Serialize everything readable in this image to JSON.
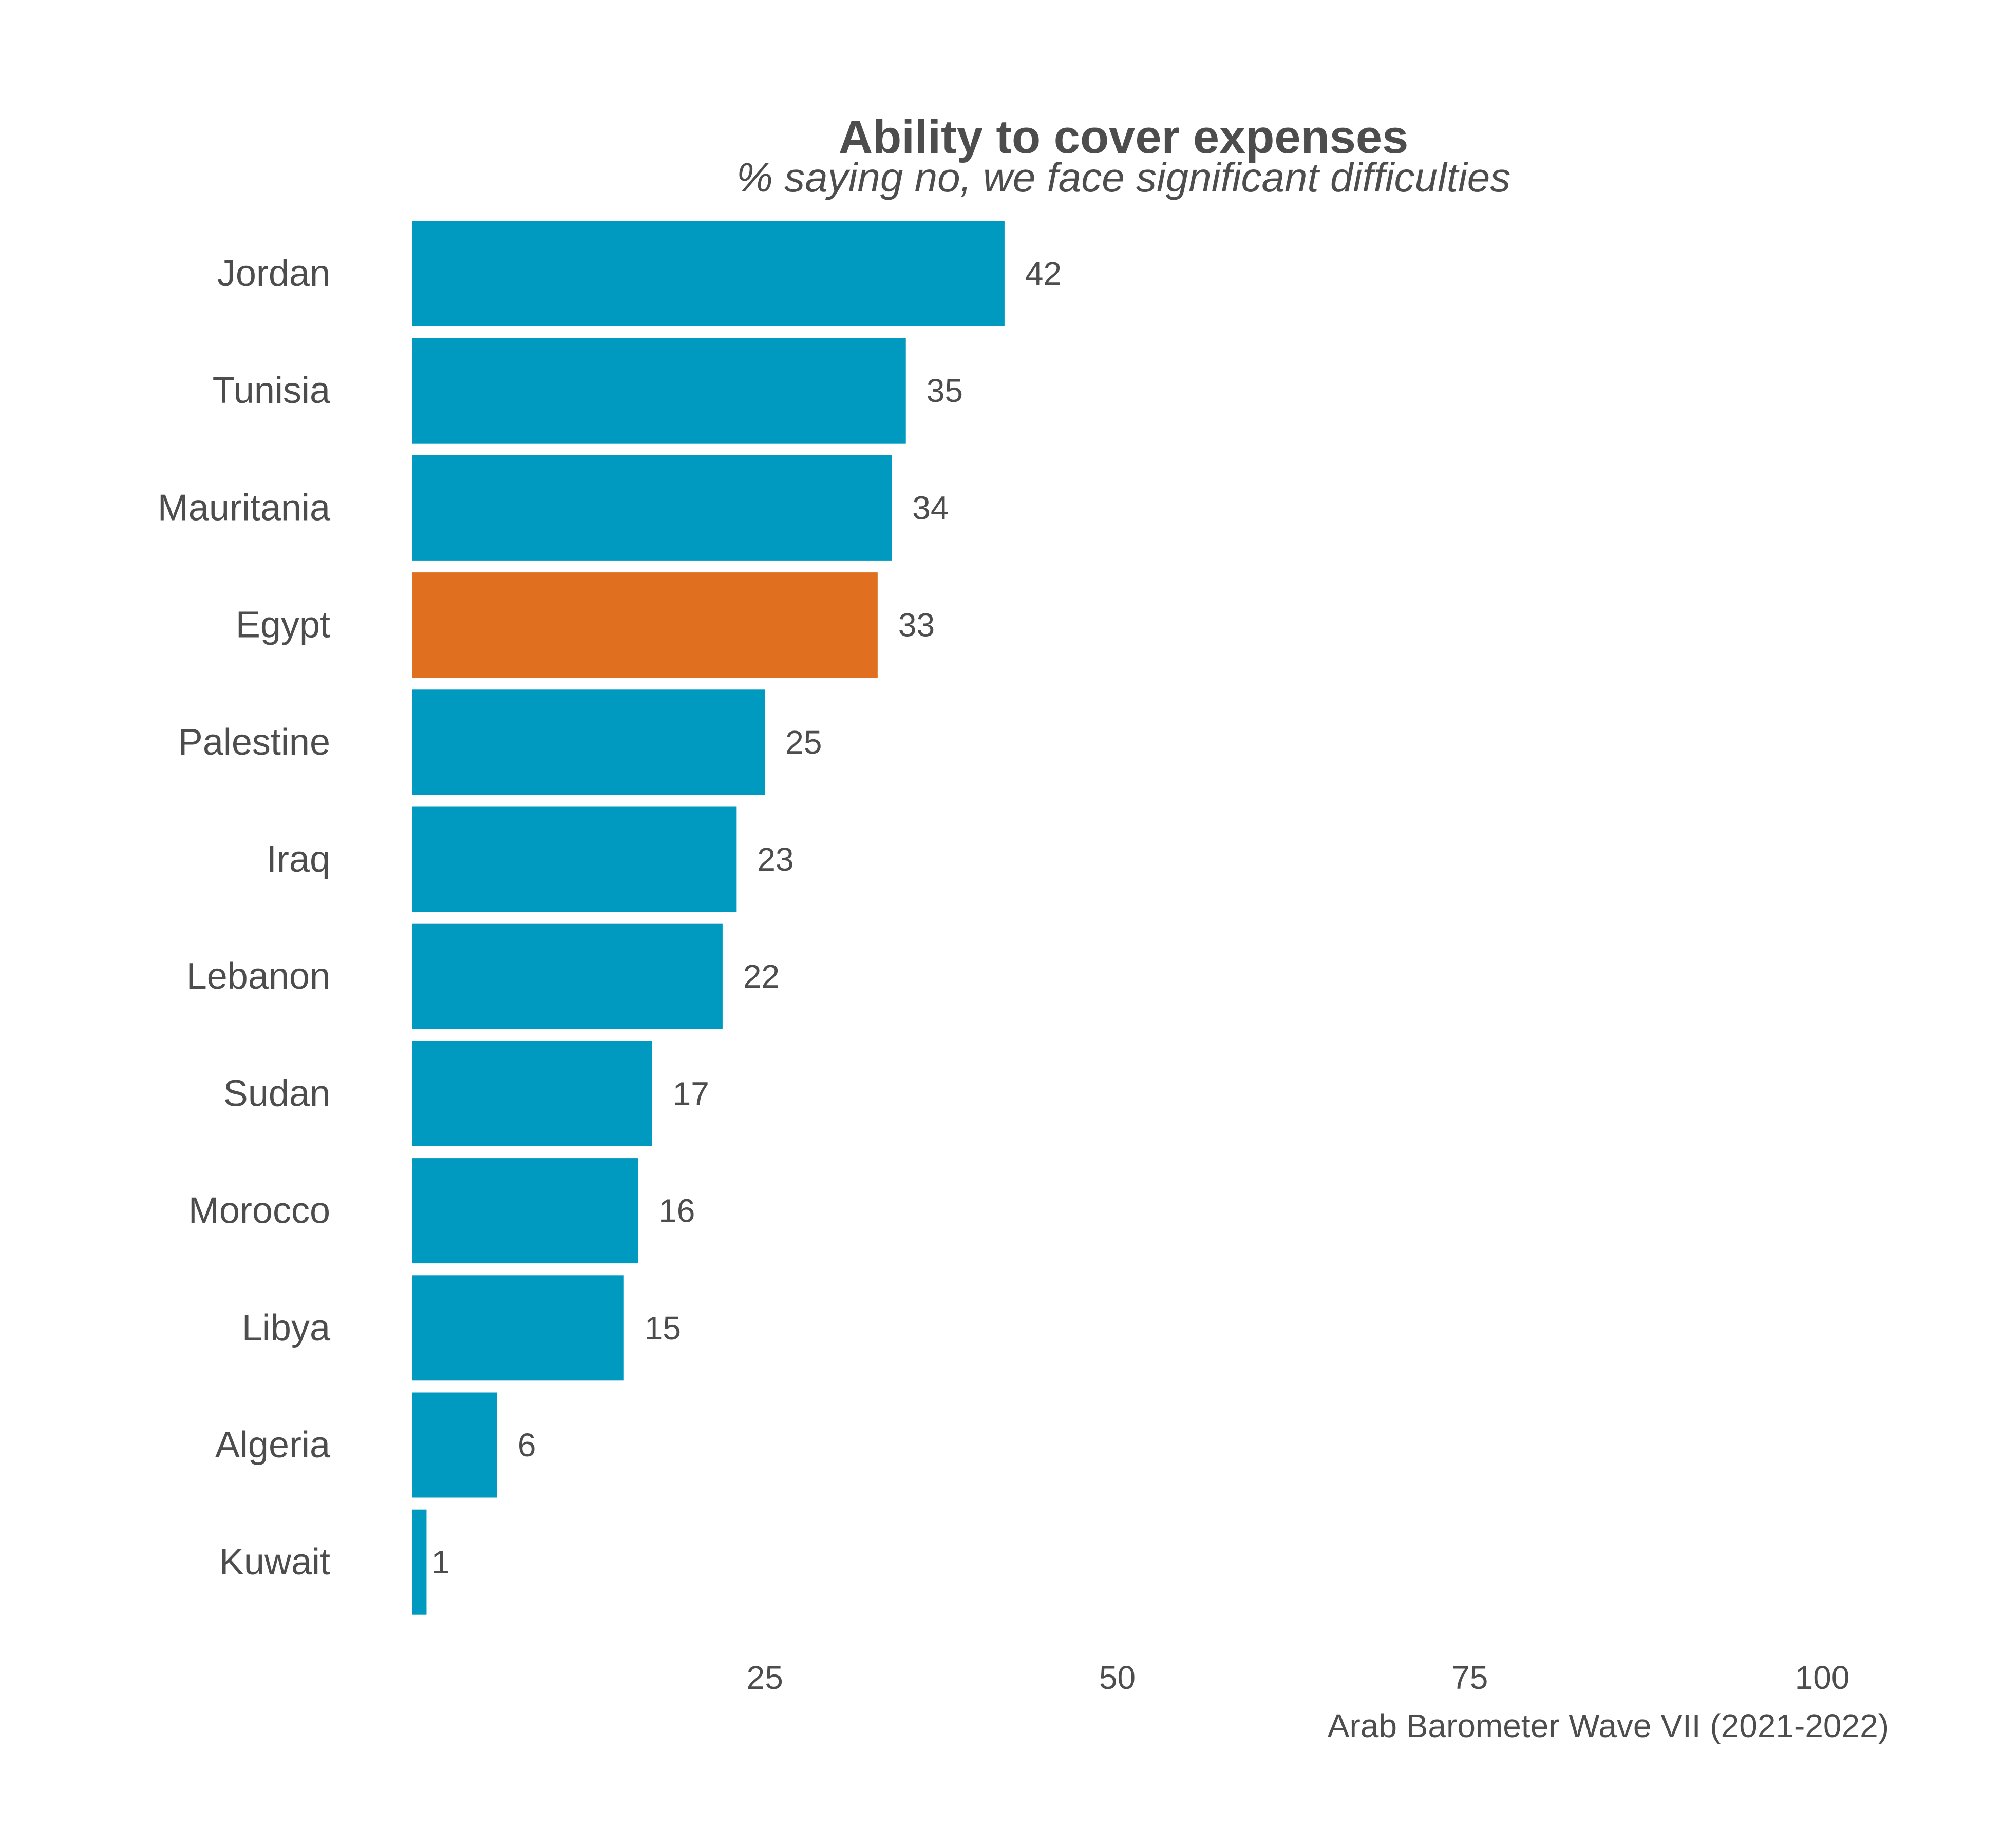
{
  "chart_data": {
    "type": "bar",
    "orientation": "horizontal",
    "title": "Ability to cover expenses",
    "subtitle": "% saying no, we face significant difficulties",
    "caption": "Arab Barometer Wave VII (2021-2022)",
    "xlabel": "",
    "ylabel": "",
    "xlim": [
      0,
      100
    ],
    "x_ticks": [
      25,
      50,
      75,
      100
    ],
    "grid": false,
    "legend": "none",
    "categories": [
      "Jordan",
      "Tunisia",
      "Mauritania",
      "Egypt",
      "Palestine",
      "Iraq",
      "Lebanon",
      "Sudan",
      "Morocco",
      "Libya",
      "Algeria",
      "Kuwait"
    ],
    "values": [
      42,
      35,
      34,
      33,
      25,
      23,
      22,
      17,
      16,
      15,
      6,
      1
    ],
    "highlight_category": "Egypt",
    "colors": {
      "default": "#0099C0",
      "highlight": "#E07020"
    }
  }
}
